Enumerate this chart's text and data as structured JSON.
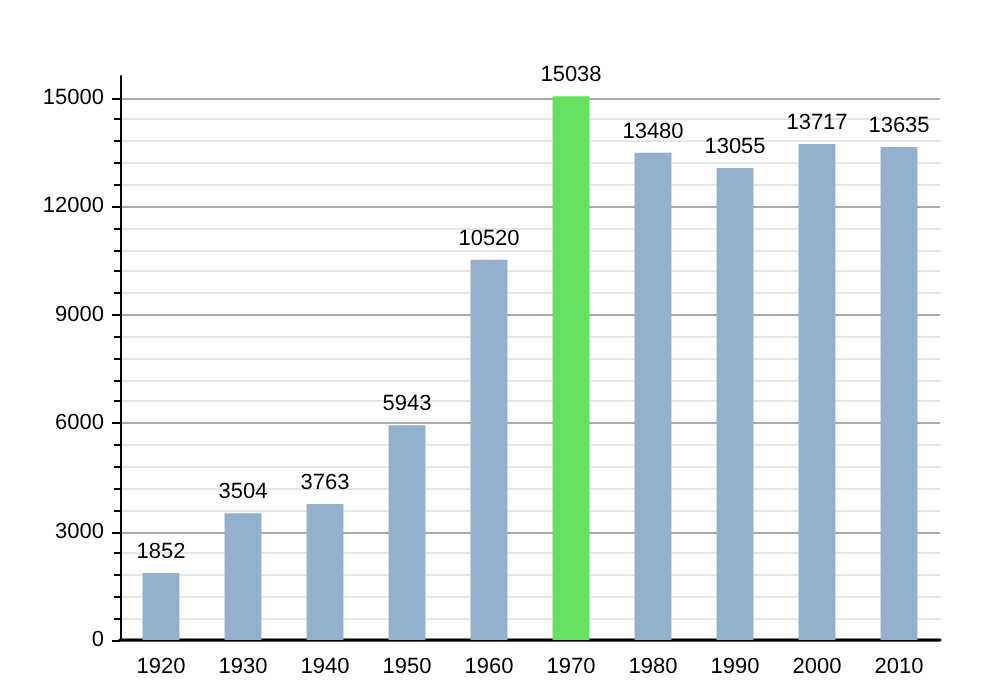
{
  "chart_data": {
    "type": "bar",
    "categories": [
      "1920",
      "1930",
      "1940",
      "1950",
      "1960",
      "1970",
      "1980",
      "1990",
      "2000",
      "2010"
    ],
    "values": [
      1852,
      3504,
      3763,
      5943,
      10520,
      15038,
      13480,
      13055,
      13717,
      13635
    ],
    "colors": [
      "#94b0cc",
      "#94b0cc",
      "#94b0cc",
      "#94b0cc",
      "#94b0cc",
      "#66e060",
      "#94b0cc",
      "#94b0cc",
      "#94b0cc",
      "#94b0cc"
    ],
    "ylim": [
      0,
      15600
    ],
    "yticks": [
      0,
      3000,
      6000,
      9000,
      12000,
      15000
    ],
    "grid": "y",
    "data_labels": true
  }
}
